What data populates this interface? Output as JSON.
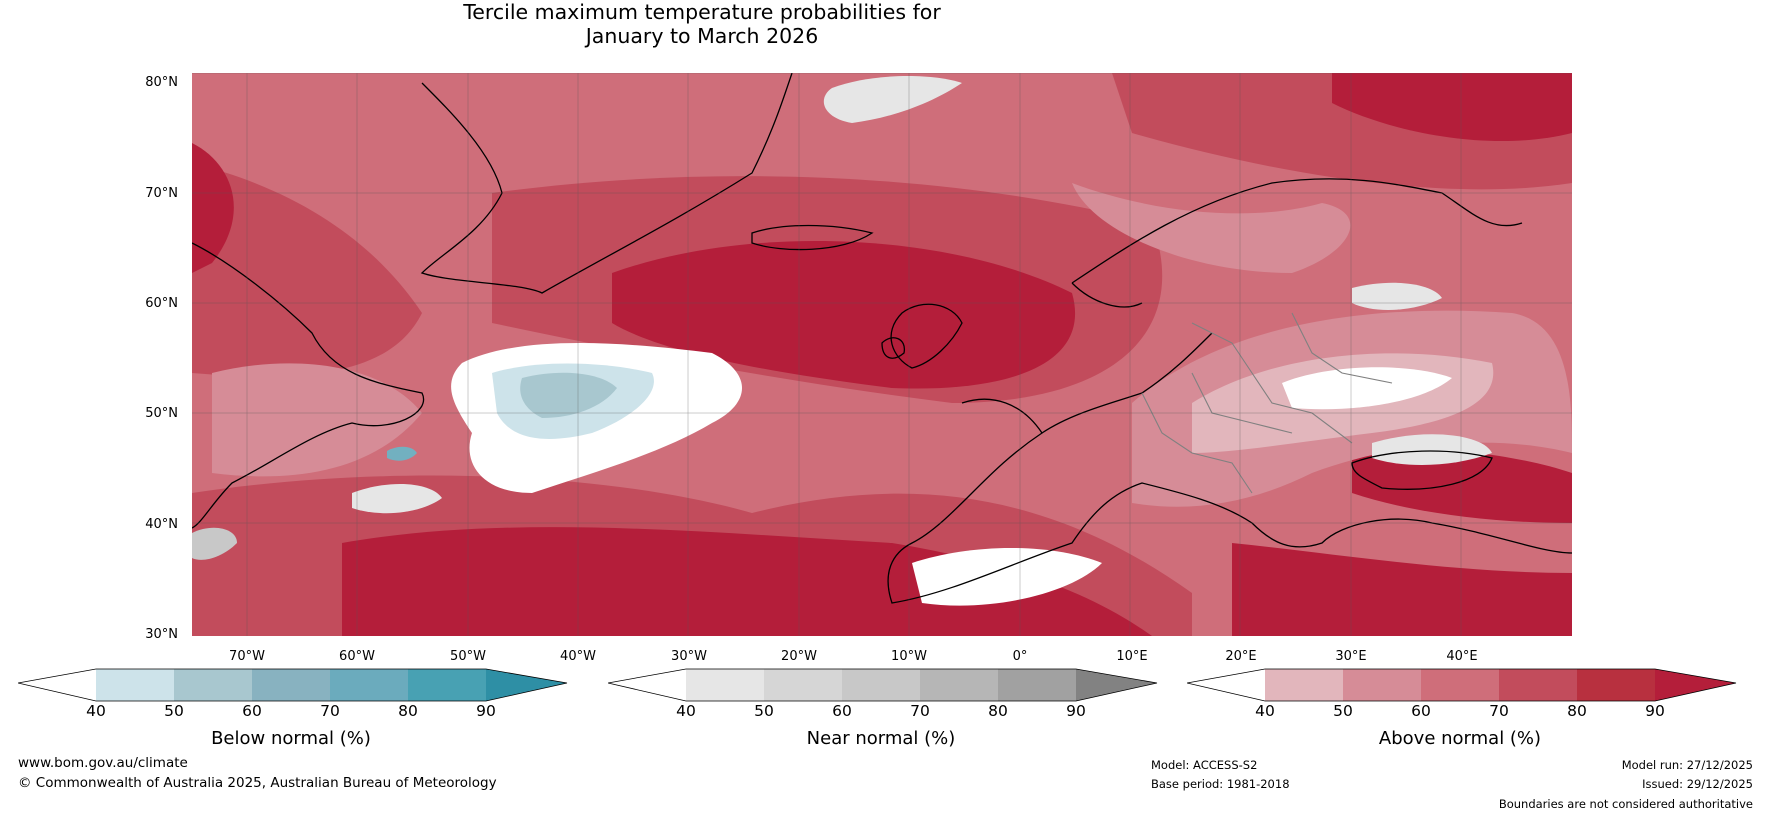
{
  "title": {
    "line1": "Tercile maximum temperature probabilities for",
    "line2": "January to March 2026"
  },
  "map": {
    "lat_labels": [
      "80°N",
      "70°N",
      "60°N",
      "50°N",
      "40°N",
      "30°N"
    ],
    "lon_labels": [
      "70°W",
      "60°W",
      "50°W",
      "40°W",
      "30°W",
      "20°W",
      "10°W",
      "0°",
      "10°E",
      "20°E",
      "30°E",
      "40°E"
    ],
    "colors": {
      "above_40_50": "#e2b6bc",
      "above_50_60": "#d68c97",
      "above_60_70": "#cf6e7a",
      "above_70_80": "#c24c5c",
      "above_80_90": "#b41e3a",
      "near_40_50": "#e6e6e6",
      "below_40_50": "#cde3ea",
      "below_50_60": "#a8c7cf",
      "below_60_70": "#72b0c0",
      "coastline": "#000000",
      "borders": "#808080"
    }
  },
  "colorbars": [
    {
      "label": "Below normal (%)",
      "ticks": [
        "40",
        "50",
        "60",
        "70",
        "80",
        "90"
      ],
      "colors": [
        "#ffffff",
        "#cde3ea",
        "#a8c7cf",
        "#88b2c0",
        "#6babbd",
        "#48a1b3",
        "#2e8fa5"
      ]
    },
    {
      "label": "Near normal (%)",
      "ticks": [
        "40",
        "50",
        "60",
        "70",
        "80",
        "90"
      ],
      "colors": [
        "#ffffff",
        "#e6e6e6",
        "#d6d6d6",
        "#c8c8c8",
        "#b6b6b6",
        "#a1a1a1",
        "#828282"
      ]
    },
    {
      "label": "Above normal (%)",
      "ticks": [
        "40",
        "50",
        "60",
        "70",
        "80",
        "90"
      ],
      "colors": [
        "#ffffff",
        "#e2b6bc",
        "#d68c97",
        "#cf6e7a",
        "#c24c5c",
        "#b8303f",
        "#b41e3a"
      ]
    }
  ],
  "footer": {
    "website": "www.bom.gov.au/climate",
    "copyright": "© Commonwealth of Australia 2025, Australian Bureau of Meteorology",
    "model": "Model: ACCESS-S2",
    "base_period": "Base period: 1981-2018",
    "model_run": "Model run: 27/12/2025",
    "issued": "Issued: 29/12/2025",
    "disclaimer": "Boundaries are not considered authoritative"
  }
}
